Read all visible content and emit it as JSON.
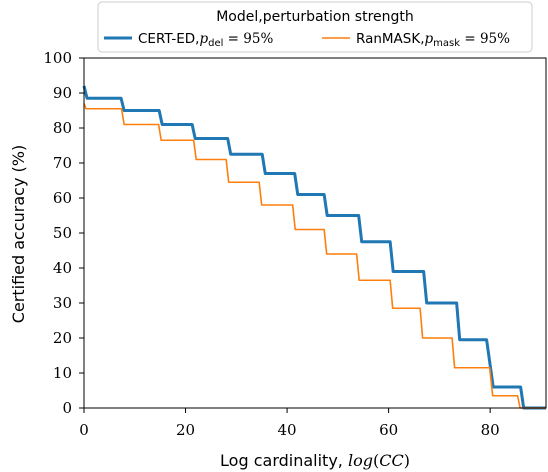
{
  "chart_data": {
    "type": "line",
    "xlabel": "Log cardinality, log(CC)",
    "ylabel": "Certified accuracy (%)",
    "xlim": [
      0,
      91
    ],
    "ylim": [
      0,
      100
    ],
    "xticks": [
      0,
      20,
      40,
      60,
      80
    ],
    "yticks": [
      0,
      10,
      20,
      30,
      40,
      50,
      60,
      70,
      80,
      90,
      100
    ],
    "legend": {
      "title": "Model,perturbation strength",
      "placement": "top",
      "entries": [
        "CERT-ED, p_del = 95%",
        "RanMASK, p_mask = 95%"
      ]
    },
    "series": [
      {
        "name": "CERT-ED, p_del = 95%",
        "color": "#1f77b4",
        "x": [
          0,
          0.6,
          7.3,
          7.9,
          14.8,
          15.4,
          21.3,
          21.9,
          28.3,
          28.9,
          35.1,
          35.7,
          41.5,
          42.1,
          47.3,
          47.9,
          54.1,
          54.7,
          60.3,
          60.9,
          66.9,
          67.5,
          73.4,
          74.0,
          79.3,
          80.6,
          86.0,
          86.6,
          91
        ],
        "y": [
          92,
          88.5,
          88.5,
          85,
          85,
          81,
          81,
          77,
          77,
          72.5,
          72.5,
          67,
          67,
          61,
          61,
          55,
          55,
          47.5,
          47.5,
          39,
          39,
          30,
          30,
          19.5,
          19.5,
          6,
          6,
          0,
          0
        ]
      },
      {
        "name": "RanMASK, p_mask = 95%",
        "color": "#ff7f0e",
        "x": [
          0,
          0.4,
          7.4,
          7.9,
          14.7,
          15.2,
          21.6,
          22.1,
          28.0,
          28.5,
          34.5,
          35.0,
          41.1,
          41.6,
          47.3,
          47.8,
          53.7,
          54.2,
          60.3,
          60.8,
          66.2,
          66.7,
          72.5,
          73.0,
          79.9,
          80.5,
          85.4,
          85.9,
          91
        ],
        "y": [
          87,
          85.5,
          85.5,
          81,
          81,
          76.5,
          76.5,
          71,
          71,
          64.5,
          64.5,
          58,
          58,
          51,
          51,
          44,
          44,
          36.5,
          36.5,
          28.5,
          28.5,
          20,
          20,
          11.5,
          11.5,
          3.5,
          3.5,
          0,
          0
        ]
      }
    ]
  }
}
